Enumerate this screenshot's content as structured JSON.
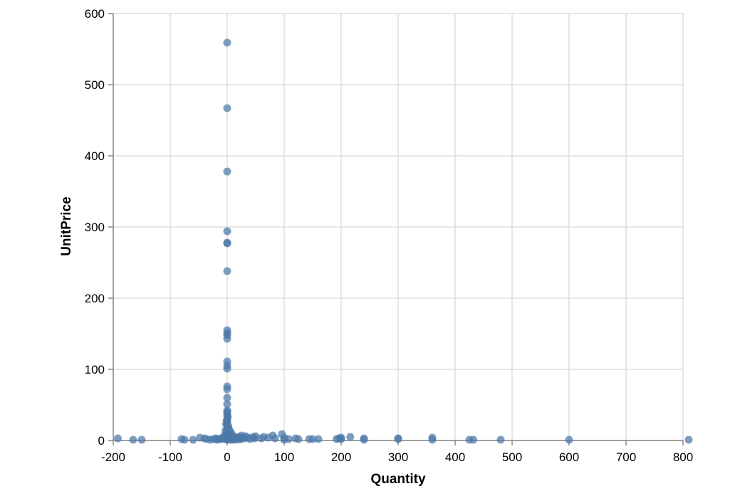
{
  "chart_data": {
    "type": "scatter",
    "title": "",
    "xlabel": "Quantity",
    "ylabel": "UnitPrice",
    "xlim": [
      -200,
      800
    ],
    "ylim": [
      0,
      600
    ],
    "x_ticks": [
      "-200",
      "-100",
      "0",
      "100",
      "200",
      "300",
      "400",
      "500",
      "600",
      "700",
      "800"
    ],
    "y_ticks": [
      "0",
      "100",
      "200",
      "300",
      "400",
      "500",
      "600"
    ],
    "grid": true,
    "point_color": "#4c78a8",
    "series": [
      {
        "points": [
          [
            0,
            559
          ],
          [
            0,
            467
          ],
          [
            0,
            378
          ],
          [
            0,
            294
          ],
          [
            0,
            278
          ],
          [
            0,
            277
          ],
          [
            0,
            238
          ],
          [
            0,
            155
          ],
          [
            0,
            151
          ],
          [
            0,
            148
          ],
          [
            0,
            143
          ],
          [
            0,
            111
          ],
          [
            0,
            105
          ],
          [
            0,
            101
          ],
          [
            0,
            76
          ],
          [
            0,
            72
          ],
          [
            0,
            60
          ],
          [
            0,
            51
          ],
          [
            0,
            42
          ],
          [
            0,
            40
          ],
          [
            0,
            38
          ],
          [
            0,
            35
          ],
          [
            0,
            30
          ],
          [
            0,
            26
          ],
          [
            0,
            22
          ],
          [
            0,
            18
          ],
          [
            0,
            15
          ],
          [
            0,
            12
          ],
          [
            0,
            9
          ],
          [
            0,
            6
          ],
          [
            0,
            3
          ],
          [
            0,
            1
          ],
          [
            -2,
            23
          ],
          [
            2,
            20
          ],
          [
            -1,
            28
          ],
          [
            1,
            33
          ],
          [
            -3,
            14
          ],
          [
            3,
            16
          ],
          [
            4,
            10
          ],
          [
            -4,
            8
          ],
          [
            5,
            6
          ],
          [
            6,
            12
          ],
          [
            -5,
            5
          ],
          [
            7,
            4
          ],
          [
            8,
            9
          ],
          [
            10,
            6
          ],
          [
            12,
            5
          ],
          [
            12,
            3
          ],
          [
            15,
            4
          ],
          [
            18,
            3
          ],
          [
            20,
            5
          ],
          [
            24,
            4
          ],
          [
            24,
            2
          ],
          [
            25,
            7
          ],
          [
            30,
            3
          ],
          [
            32,
            6
          ],
          [
            36,
            4
          ],
          [
            40,
            2
          ],
          [
            45,
            5
          ],
          [
            48,
            3
          ],
          [
            50,
            6
          ],
          [
            60,
            3
          ],
          [
            64,
            5
          ],
          [
            72,
            4
          ],
          [
            80,
            7
          ],
          [
            84,
            3
          ],
          [
            96,
            9
          ],
          [
            100,
            4
          ],
          [
            100,
            1
          ],
          [
            108,
            2
          ],
          [
            120,
            3
          ],
          [
            125,
            2
          ],
          [
            144,
            2
          ],
          [
            150,
            2
          ],
          [
            160,
            2
          ],
          [
            192,
            2
          ],
          [
            196,
            3
          ],
          [
            200,
            2
          ],
          [
            200,
            4
          ],
          [
            216,
            5
          ],
          [
            240,
            3
          ],
          [
            240,
            1
          ],
          [
            300,
            2
          ],
          [
            300,
            3
          ],
          [
            360,
            4
          ],
          [
            360,
            1
          ],
          [
            425,
            1
          ],
          [
            432,
            1
          ],
          [
            480,
            1
          ],
          [
            600,
            1
          ],
          [
            810,
            1
          ],
          [
            -1,
            2
          ],
          [
            -3,
            3
          ],
          [
            -6,
            2
          ],
          [
            -8,
            4
          ],
          [
            -10,
            3
          ],
          [
            -12,
            2
          ],
          [
            -15,
            2
          ],
          [
            -18,
            1
          ],
          [
            -20,
            3
          ],
          [
            -24,
            2
          ],
          [
            -30,
            1
          ],
          [
            -36,
            2
          ],
          [
            -40,
            3
          ],
          [
            -48,
            4
          ],
          [
            -60,
            1
          ],
          [
            -75,
            1
          ],
          [
            -80,
            2
          ],
          [
            -150,
            1
          ],
          [
            -165,
            1
          ],
          [
            -192,
            3
          ],
          [
            2,
            2
          ],
          [
            3,
            5
          ],
          [
            4,
            3
          ],
          [
            6,
            1
          ],
          [
            8,
            2
          ],
          [
            10,
            1
          ],
          [
            16,
            1
          ],
          [
            22,
            2
          ]
        ]
      }
    ]
  }
}
